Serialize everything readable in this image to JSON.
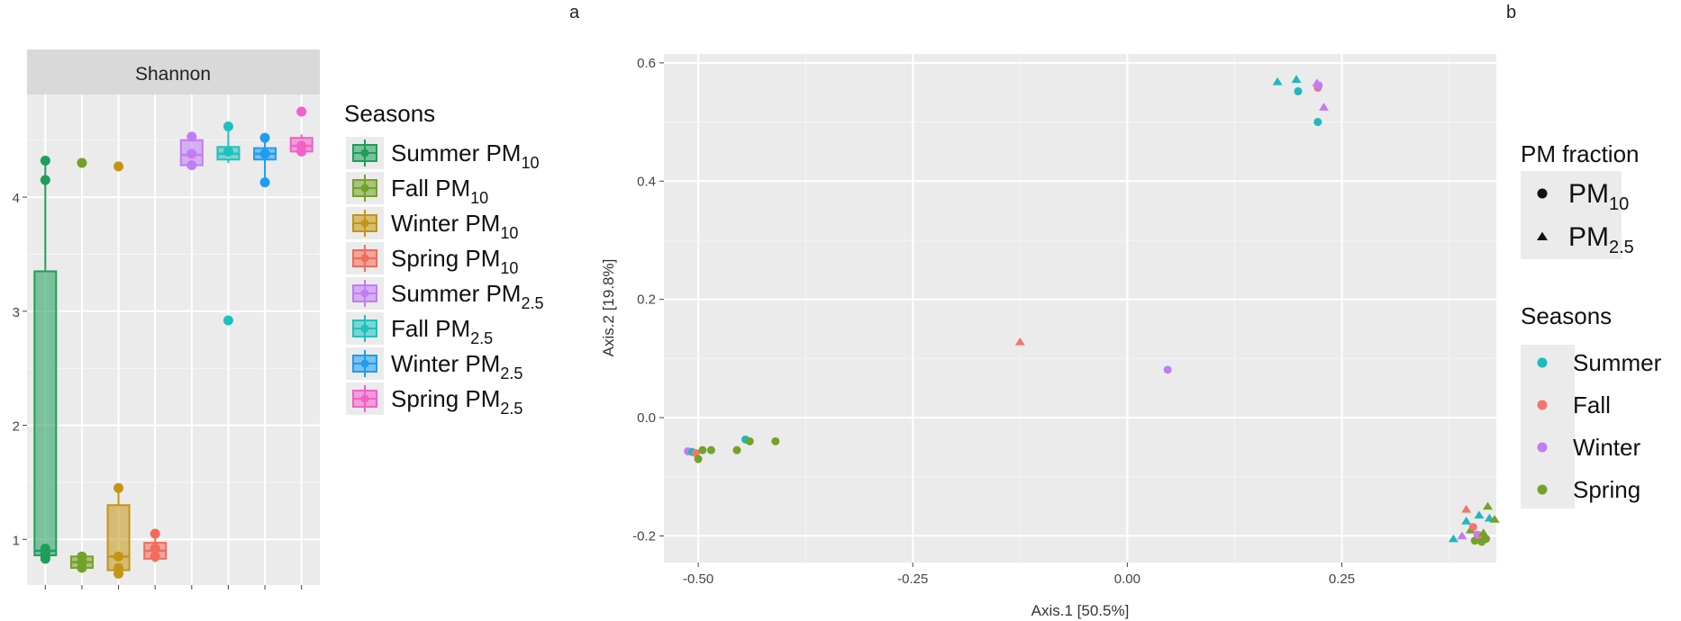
{
  "panel_labels": {
    "a": "a",
    "b": "b"
  },
  "chart_data": [
    {
      "type": "box",
      "facet_title": "Shannon",
      "ylim": [
        0.6,
        4.9
      ],
      "yticks": [
        1,
        2,
        3,
        4
      ],
      "xlabel": "",
      "ylabel": "",
      "grid": true,
      "legend": {
        "title": "Seasons",
        "placement": "right",
        "entries": [
          {
            "main": "Summer PM",
            "sub": "10",
            "color": "#1E9E5A"
          },
          {
            "main": "Fall PM",
            "sub": "10",
            "color": "#72A227"
          },
          {
            "main": "Winter PM",
            "sub": "10",
            "color": "#C39512"
          },
          {
            "main": "Spring PM",
            "sub": "10",
            "color": "#F26B5B"
          },
          {
            "main": "Summer PM",
            "sub": "2.5",
            "color": "#C27CF5"
          },
          {
            "main": "Fall PM",
            "sub": "2.5",
            "color": "#1FC1BC"
          },
          {
            "main": "Winter PM",
            "sub": "2.5",
            "color": "#1E9CF0"
          },
          {
            "main": "Spring PM",
            "sub": "2.5",
            "color": "#F45FC8"
          }
        ]
      },
      "boxes": [
        {
          "group": "Summer PM10",
          "q1": 0.86,
          "median": 0.9,
          "q3": 3.35,
          "whisker_low": 0.82,
          "whisker_high": 4.32,
          "points": [
            4.32,
            4.15,
            0.92,
            0.88,
            0.85,
            0.83
          ]
        },
        {
          "group": "Fall PM10",
          "q1": 0.75,
          "median": 0.8,
          "q3": 0.85,
          "whisker_low": 0.73,
          "whisker_high": 0.87,
          "points": [
            4.3,
            0.85,
            0.8,
            0.75
          ]
        },
        {
          "group": "Winter PM10",
          "q1": 0.73,
          "median": 0.85,
          "q3": 1.3,
          "whisker_low": 0.7,
          "whisker_high": 1.45,
          "points": [
            4.27,
            1.45,
            0.85,
            0.75,
            0.7
          ]
        },
        {
          "group": "Spring PM10",
          "q1": 0.83,
          "median": 0.9,
          "q3": 0.97,
          "whisker_low": 0.8,
          "whisker_high": 1.05,
          "points": [
            1.05,
            0.92,
            0.85
          ]
        },
        {
          "group": "Summer PM2.5",
          "q1": 4.28,
          "median": 4.37,
          "q3": 4.5,
          "whisker_low": 4.25,
          "whisker_high": 4.53,
          "points": [
            4.53,
            4.38,
            4.28
          ]
        },
        {
          "group": "Fall PM2.5",
          "q1": 4.33,
          "median": 4.38,
          "q3": 4.44,
          "whisker_low": 4.3,
          "whisker_high": 4.62,
          "points": [
            4.62,
            4.4,
            2.92
          ]
        },
        {
          "group": "Winter PM2.5",
          "q1": 4.33,
          "median": 4.38,
          "q3": 4.43,
          "whisker_low": 4.13,
          "whisker_high": 4.52,
          "points": [
            4.52,
            4.38,
            4.13
          ]
        },
        {
          "group": "Spring PM2.5",
          "q1": 4.4,
          "median": 4.45,
          "q3": 4.52,
          "whisker_low": 4.38,
          "whisker_high": 4.55,
          "points": [
            4.75,
            4.45,
            4.4
          ]
        }
      ]
    },
    {
      "type": "scatter",
      "xlabel": "Axis.1   [50.5%]",
      "ylabel": "Axis.2   [19.8%]",
      "xlim": [
        -0.54,
        0.43
      ],
      "ylim": [
        -0.245,
        0.615
      ],
      "xticks": [
        -0.5,
        -0.25,
        0.0,
        0.25
      ],
      "xtick_labels": [
        "-0.50",
        "-0.25",
        "0.00",
        "0.25"
      ],
      "yticks": [
        -0.2,
        0.0,
        0.2,
        0.4,
        0.6
      ],
      "ytick_labels": [
        "-0.2",
        "0.0",
        "0.2",
        "0.4",
        "0.6"
      ],
      "grid": true,
      "legend_shape": {
        "title": "PM fraction",
        "placement": "right",
        "entries": [
          {
            "main": "PM",
            "sub": "10",
            "shape": "circle"
          },
          {
            "main": "PM",
            "sub": "2.5",
            "shape": "triangle"
          }
        ]
      },
      "legend_color": {
        "title": "Seasons",
        "placement": "right",
        "entries": [
          {
            "label": "Summer",
            "color": "#1DB9BF"
          },
          {
            "label": "Fall",
            "color": "#F0766F"
          },
          {
            "label": "Winter",
            "color": "#C27CF5"
          },
          {
            "label": "Spring",
            "color": "#72A227"
          }
        ]
      },
      "points": [
        {
          "x": 0.175,
          "y": 0.568,
          "season": "Summer",
          "pm": "PM2.5"
        },
        {
          "x": 0.197,
          "y": 0.572,
          "season": "Summer",
          "pm": "PM2.5"
        },
        {
          "x": 0.199,
          "y": 0.552,
          "season": "Summer",
          "pm": "PM10"
        },
        {
          "x": 0.221,
          "y": 0.566,
          "season": "Winter",
          "pm": "PM2.5"
        },
        {
          "x": 0.222,
          "y": 0.558,
          "season": "Fall",
          "pm": "PM10"
        },
        {
          "x": 0.223,
          "y": 0.562,
          "season": "Winter",
          "pm": "PM10"
        },
        {
          "x": 0.229,
          "y": 0.525,
          "season": "Winter",
          "pm": "PM2.5"
        },
        {
          "x": 0.222,
          "y": 0.5,
          "season": "Summer",
          "pm": "PM10"
        },
        {
          "x": -0.125,
          "y": 0.128,
          "season": "Fall",
          "pm": "PM2.5"
        },
        {
          "x": 0.047,
          "y": 0.081,
          "season": "Winter",
          "pm": "PM10"
        },
        {
          "x": -0.512,
          "y": -0.057,
          "season": "Winter",
          "pm": "PM10"
        },
        {
          "x": -0.507,
          "y": -0.058,
          "season": "Summer",
          "pm": "PM10"
        },
        {
          "x": -0.503,
          "y": -0.06,
          "season": "Fall",
          "pm": "PM10"
        },
        {
          "x": -0.5,
          "y": -0.07,
          "season": "Spring",
          "pm": "PM10"
        },
        {
          "x": -0.495,
          "y": -0.055,
          "season": "Spring",
          "pm": "PM10"
        },
        {
          "x": -0.485,
          "y": -0.055,
          "season": "Spring",
          "pm": "PM10"
        },
        {
          "x": -0.455,
          "y": -0.055,
          "season": "Spring",
          "pm": "PM10"
        },
        {
          "x": -0.445,
          "y": -0.037,
          "season": "Summer",
          "pm": "PM10"
        },
        {
          "x": -0.44,
          "y": -0.04,
          "season": "Spring",
          "pm": "PM10"
        },
        {
          "x": -0.41,
          "y": -0.04,
          "season": "Spring",
          "pm": "PM10"
        },
        {
          "x": 0.38,
          "y": -0.205,
          "season": "Summer",
          "pm": "PM2.5"
        },
        {
          "x": 0.39,
          "y": -0.2,
          "season": "Winter",
          "pm": "PM2.5"
        },
        {
          "x": 0.395,
          "y": -0.155,
          "season": "Fall",
          "pm": "PM2.5"
        },
        {
          "x": 0.395,
          "y": -0.175,
          "season": "Summer",
          "pm": "PM2.5"
        },
        {
          "x": 0.4,
          "y": -0.19,
          "season": "Spring",
          "pm": "PM2.5"
        },
        {
          "x": 0.403,
          "y": -0.185,
          "season": "Fall",
          "pm": "PM10"
        },
        {
          "x": 0.405,
          "y": -0.208,
          "season": "Spring",
          "pm": "PM10"
        },
        {
          "x": 0.408,
          "y": -0.198,
          "season": "Winter",
          "pm": "PM10"
        },
        {
          "x": 0.41,
          "y": -0.165,
          "season": "Summer",
          "pm": "PM2.5"
        },
        {
          "x": 0.412,
          "y": -0.2,
          "season": "Fall",
          "pm": "PM2.5"
        },
        {
          "x": 0.413,
          "y": -0.21,
          "season": "Spring",
          "pm": "PM10"
        },
        {
          "x": 0.415,
          "y": -0.195,
          "season": "Spring",
          "pm": "PM2.5"
        },
        {
          "x": 0.418,
          "y": -0.205,
          "season": "Spring",
          "pm": "PM10"
        },
        {
          "x": 0.42,
          "y": -0.15,
          "season": "Spring",
          "pm": "PM2.5"
        },
        {
          "x": 0.422,
          "y": -0.17,
          "season": "Summer",
          "pm": "PM2.5"
        },
        {
          "x": 0.428,
          "y": -0.172,
          "season": "Spring",
          "pm": "PM2.5"
        }
      ]
    }
  ]
}
